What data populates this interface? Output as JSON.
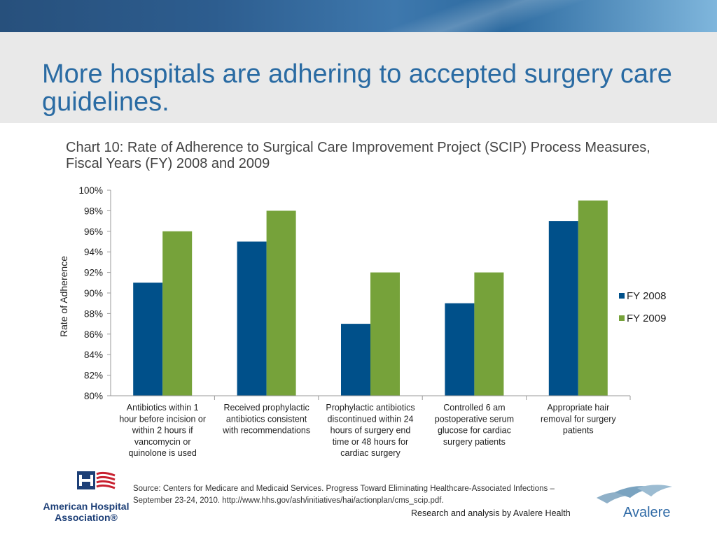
{
  "slide": {
    "title": "More hospitals are adhering to accepted surgery care guidelines."
  },
  "colors": {
    "fy2008": "#00508a",
    "fy2009": "#76a23a",
    "title_blue": "#2a6ba3"
  },
  "chart_data": {
    "type": "bar",
    "title": "Chart 10: Rate of Adherence to Surgical Care Improvement Project (SCIP) Process Measures, Fiscal Years (FY) 2008 and 2009",
    "xlabel": "",
    "ylabel": "Rate of Adherence",
    "ylim": [
      80,
      100
    ],
    "yticks": [
      "80%",
      "82%",
      "84%",
      "86%",
      "88%",
      "90%",
      "92%",
      "94%",
      "96%",
      "98%",
      "100%"
    ],
    "categories": [
      "Antibiotics within 1 hour before incision or within 2 hours if vancomycin or quinolone is used",
      "Received prophylactic antibiotics consistent with recommendations",
      "Prophylactic antibiotics discontinued within 24 hours of surgery end time or 48 hours for cardiac surgery",
      "Controlled 6 am postoperative serum glucose for cardiac surgery patients",
      "Appropriate hair removal for surgery patients"
    ],
    "category_lines": [
      [
        "Antibiotics within 1",
        "hour before incision or",
        "within 2 hours if",
        "vancomycin or",
        "quinolone is used"
      ],
      [
        "Received prophylactic",
        "antibiotics consistent",
        "with recommendations"
      ],
      [
        "Prophylactic antibiotics",
        "discontinued within 24",
        "hours of surgery end",
        "time or 48 hours for",
        "cardiac surgery"
      ],
      [
        "Controlled 6 am",
        "postoperative serum",
        "glucose for cardiac",
        "surgery patients"
      ],
      [
        "Appropriate hair",
        "removal for surgery",
        "patients"
      ]
    ],
    "series": [
      {
        "name": "FY 2008",
        "values": [
          91,
          95,
          87,
          89,
          97
        ]
      },
      {
        "name": "FY 2009",
        "values": [
          96,
          98,
          92,
          92,
          99
        ]
      }
    ],
    "legend_position": "right",
    "grid": false
  },
  "footer": {
    "source": "Source: Centers for Medicare and Medicaid Services. Progress Toward Eliminating Healthcare-Associated Infections – September 23-24, 2010. http://www.hhs.gov/ash/initiatives/hai/actionplan/cms_scip.pdf.",
    "credit": "Research and analysis by Avalere Health",
    "aha_logo_text": "American Hospital Association®",
    "avalere_logo_text": "Avalere"
  }
}
